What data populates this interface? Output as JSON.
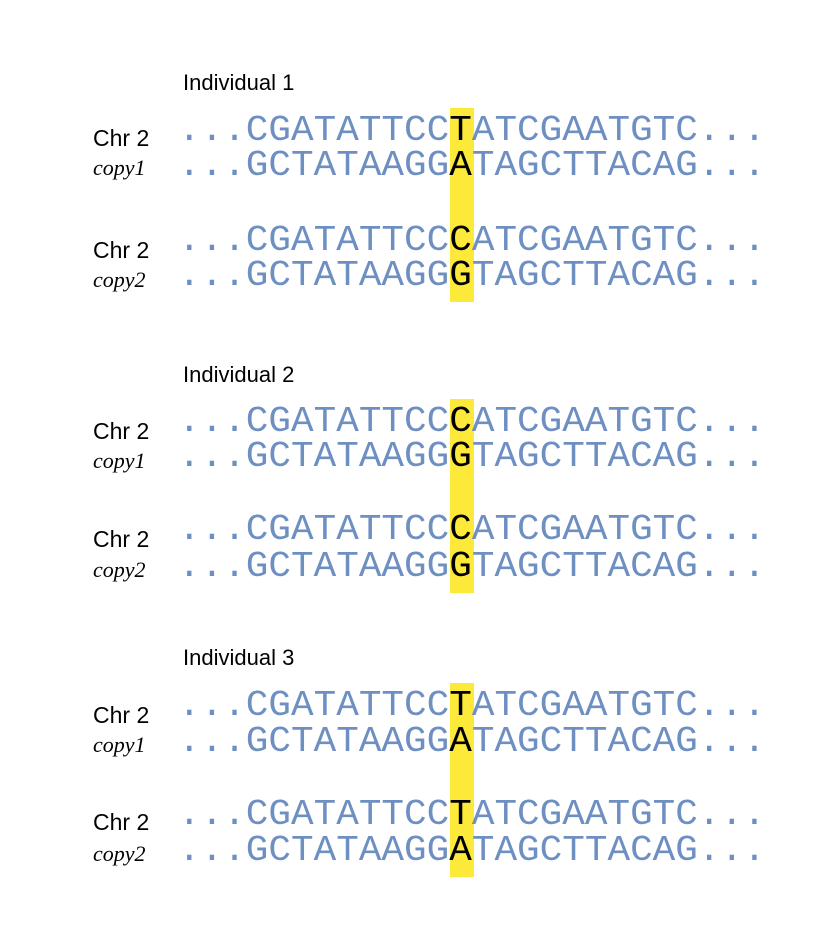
{
  "individuals": [
    {
      "title": "Individual 1",
      "copies": [
        {
          "chr": "Chr 2",
          "copy": "copy1",
          "top": {
            "ellipsis_left": "...",
            "before": "CGATATTCC",
            "snp": "T",
            "after": "ATCGAATGTC",
            "ellipsis_right": "..."
          },
          "bottom": {
            "ellipsis_left": "...",
            "before": "GCTATAAGG",
            "snp": "A",
            "after": "TAGCTTACAG",
            "ellipsis_right": "..."
          }
        },
        {
          "chr": "Chr 2",
          "copy": "copy2",
          "top": {
            "ellipsis_left": "...",
            "before": "CGATATTCC",
            "snp": "C",
            "after": "ATCGAATGTC",
            "ellipsis_right": "..."
          },
          "bottom": {
            "ellipsis_left": "...",
            "before": "GCTATAAGG",
            "snp": "G",
            "after": "TAGCTTACAG",
            "ellipsis_right": "..."
          }
        }
      ]
    },
    {
      "title": "Individual 2",
      "copies": [
        {
          "chr": "Chr 2",
          "copy": "copy1",
          "top": {
            "ellipsis_left": "...",
            "before": "CGATATTCC",
            "snp": "C",
            "after": "ATCGAATGTC",
            "ellipsis_right": "..."
          },
          "bottom": {
            "ellipsis_left": "...",
            "before": "GCTATAAGG",
            "snp": "G",
            "after": "TAGCTTACAG",
            "ellipsis_right": "..."
          }
        },
        {
          "chr": "Chr 2",
          "copy": "copy2",
          "top": {
            "ellipsis_left": "...",
            "before": "CGATATTCC",
            "snp": "C",
            "after": "ATCGAATGTC",
            "ellipsis_right": "..."
          },
          "bottom": {
            "ellipsis_left": "...",
            "before": "GCTATAAGG",
            "snp": "G",
            "after": "TAGCTTACAG",
            "ellipsis_right": "..."
          }
        }
      ]
    },
    {
      "title": "Individual 3",
      "copies": [
        {
          "chr": "Chr 2",
          "copy": "copy1",
          "top": {
            "ellipsis_left": "...",
            "before": "CGATATTCC",
            "snp": "T",
            "after": "ATCGAATGTC",
            "ellipsis_right": "..."
          },
          "bottom": {
            "ellipsis_left": "...",
            "before": "GCTATAAGG",
            "snp": "A",
            "after": "TAGCTTACAG",
            "ellipsis_right": "..."
          }
        },
        {
          "chr": "Chr 2",
          "copy": "copy2",
          "top": {
            "ellipsis_left": "...",
            "before": "CGATATTCC",
            "snp": "T",
            "after": "ATCGAATGTC",
            "ellipsis_right": "..."
          },
          "bottom": {
            "ellipsis_left": "...",
            "before": "GCTATAAGG",
            "snp": "A",
            "after": "TAGCTTACAG",
            "ellipsis_right": "..."
          }
        }
      ]
    }
  ],
  "colors": {
    "sequence": "#6e8fc2",
    "snp_text": "#000000",
    "highlight": "#fde93a"
  }
}
